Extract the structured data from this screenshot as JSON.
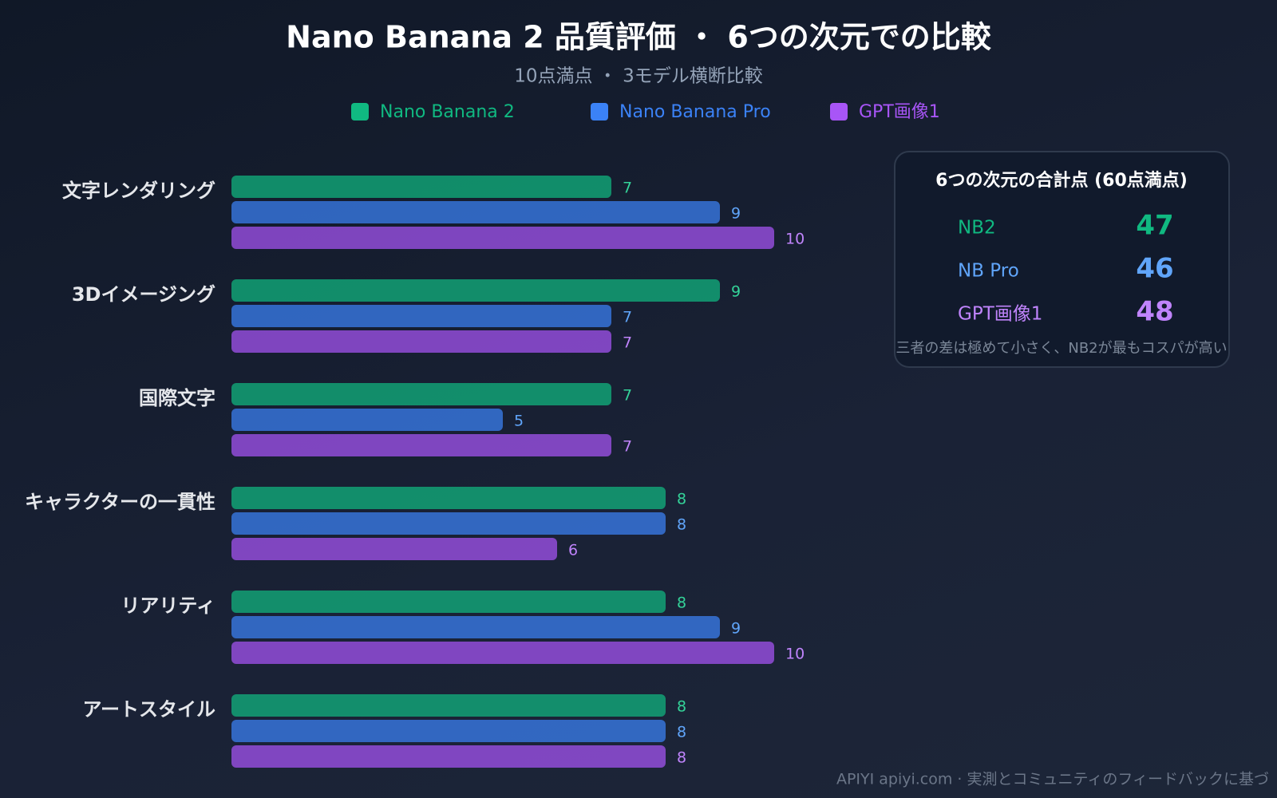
{
  "chart_data": {
    "type": "bar",
    "orientation": "horizontal",
    "title": "Nano Banana 2 品質評価 ・ 6つの次元での比較",
    "subtitle": "10点満点 ・ 3モデル横断比較",
    "categories": [
      "文字レンダリング",
      "3Dイメージング",
      "国際文字",
      "キャラクターの一貫性",
      "リアリティ",
      "アートスタイル"
    ],
    "series": [
      {
        "name": "Nano Banana 2",
        "color": "#10b981",
        "values": [
          7,
          9,
          7,
          8,
          8,
          8
        ]
      },
      {
        "name": "Nano Banana Pro",
        "color": "#3b82f6",
        "values": [
          9,
          7,
          5,
          8,
          9,
          8
        ]
      },
      {
        "name": "GPT画像1",
        "color": "#a855f7",
        "values": [
          10,
          7,
          7,
          6,
          10,
          8
        ]
      }
    ],
    "xlim": [
      0,
      10
    ],
    "grid": false,
    "legend": "top"
  },
  "summary": {
    "title": "6つの次元の合計点 (60点満点)",
    "rows": [
      {
        "label": "NB2",
        "value": 47,
        "color": "#10b981"
      },
      {
        "label": "NB Pro",
        "value": 46,
        "color": "#60a5fa"
      },
      {
        "label": "GPT画像1",
        "value": 48,
        "color": "#c084fc"
      }
    ],
    "note": "三者の差は極めて小さく、NB2が最もコスパが高い"
  },
  "footer": "APIYI apiyi.com · 実測とコミュニティのフィードバックに基づ"
}
